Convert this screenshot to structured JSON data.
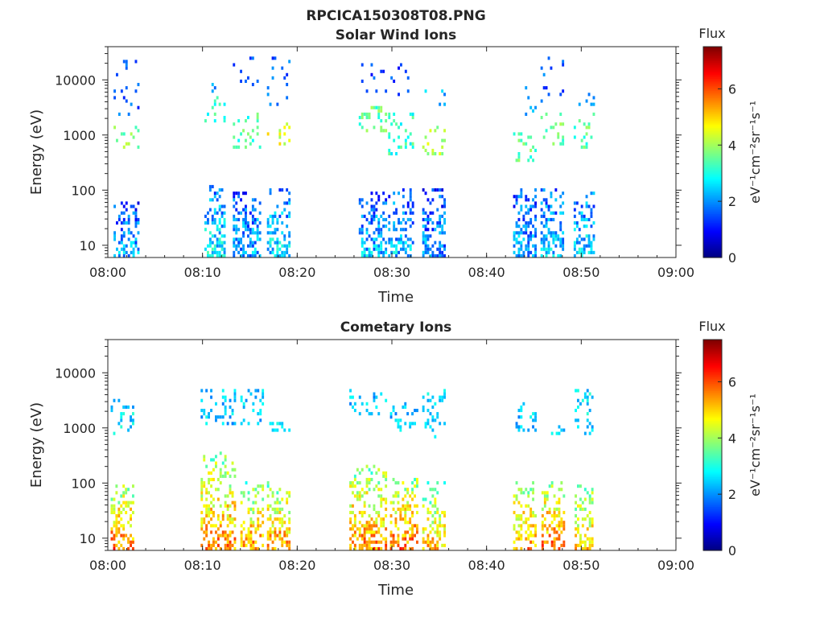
{
  "figure": {
    "title": "RPCICA150308T08.PNG"
  },
  "colormap": [
    "#00007f",
    "#0000ff",
    "#007fff",
    "#00ffff",
    "#7fff7f",
    "#ffff00",
    "#ff7f00",
    "#ff0000",
    "#7f0000"
  ],
  "chart_data": [
    {
      "type": "heatmap",
      "title": "Solar Wind Ions",
      "xlabel": "Time",
      "ylabel": "Energy (eV)",
      "x_ticks": [
        "08:00",
        "08:10",
        "08:20",
        "08:30",
        "08:40",
        "08:50",
        "09:00"
      ],
      "x_range_minutes": [
        0,
        60
      ],
      "y_scale": "log",
      "y_range": [
        6,
        40000
      ],
      "y_ticks": [
        "10",
        "100",
        "1000",
        "10000"
      ],
      "y_tick_values": [
        10,
        100,
        1000,
        10000
      ],
      "colorbar": {
        "label": "Flux",
        "unit": "eV⁻¹cm⁻²sr⁻¹s⁻¹",
        "ticks": [
          "0",
          "2",
          "4",
          "6"
        ],
        "range": [
          0,
          7.5
        ]
      },
      "bursts": [
        {
          "start_min": 0.6,
          "end_min": 3.3,
          "low_flux": 2.2,
          "low_band": [
            6,
            60
          ],
          "mid": [
            500,
            1300,
            3.8
          ],
          "high": [
            2000,
            25000,
            1.6
          ]
        },
        {
          "start_min": 10.2,
          "end_min": 12.3,
          "low_flux": 2.8,
          "low_band": [
            6,
            110
          ],
          "mid": [
            1500,
            5000,
            3.2
          ],
          "high": [
            3000,
            8000,
            2.0
          ]
        },
        {
          "start_min": 13.2,
          "end_min": 16.2,
          "low_flux": 2.2,
          "low_band": [
            6,
            100
          ],
          "mid": [
            500,
            2500,
            3.3
          ],
          "high": [
            5000,
            26000,
            1.4
          ]
        },
        {
          "start_min": 16.8,
          "end_min": 19.3,
          "low_flux": 2.6,
          "low_band": [
            6,
            100
          ],
          "mid": [
            600,
            1500,
            4.5
          ],
          "high": [
            3000,
            24000,
            1.6
          ]
        },
        {
          "start_min": 26.5,
          "end_min": 29.3,
          "low_flux": 2.3,
          "low_band": [
            6,
            100
          ],
          "mid": [
            1000,
            3000,
            3.5
          ],
          "high": [
            5000,
            20000,
            1.4
          ]
        },
        {
          "start_min": 29.6,
          "end_min": 32.3,
          "low_flux": 2.4,
          "low_band": [
            6,
            100
          ],
          "mid": [
            400,
            2500,
            3.2
          ],
          "high": [
            5000,
            20000,
            1.4
          ]
        },
        {
          "start_min": 33.2,
          "end_min": 35.5,
          "low_flux": 2.0,
          "low_band": [
            6,
            100
          ],
          "mid": [
            400,
            1300,
            4.0
          ],
          "high": [
            3000,
            7000,
            2.2
          ]
        },
        {
          "start_min": 42.8,
          "end_min": 45.2,
          "low_flux": 2.2,
          "low_band": [
            6,
            100
          ],
          "mid": [
            300,
            1000,
            3.5
          ],
          "high": [
            2000,
            8000,
            2.0
          ]
        },
        {
          "start_min": 45.7,
          "end_min": 48.2,
          "low_flux": 2.4,
          "low_band": [
            6,
            100
          ],
          "mid": [
            600,
            2500,
            3.6
          ],
          "high": [
            3000,
            40000,
            1.6
          ]
        },
        {
          "start_min": 49.2,
          "end_min": 51.3,
          "low_flux": 2.6,
          "low_band": [
            6,
            90
          ],
          "mid": [
            500,
            2500,
            3.4
          ],
          "high": [
            2000,
            7000,
            2.2
          ]
        }
      ]
    },
    {
      "type": "heatmap",
      "title": "Cometary Ions",
      "xlabel": "Time",
      "ylabel": "Energy (eV)",
      "x_ticks": [
        "08:00",
        "08:10",
        "08:20",
        "08:30",
        "08:40",
        "08:50",
        "09:00"
      ],
      "x_range_minutes": [
        0,
        60
      ],
      "y_scale": "log",
      "y_range": [
        6,
        40000
      ],
      "y_ticks": [
        "10",
        "100",
        "1000",
        "10000"
      ],
      "y_tick_values": [
        10,
        100,
        1000,
        10000
      ],
      "colorbar": {
        "label": "Flux",
        "unit": "eV⁻¹cm⁻²sr⁻¹s⁻¹",
        "ticks": [
          "0",
          "2",
          "4",
          "6"
        ],
        "range": [
          0,
          7.5
        ]
      },
      "bursts": [
        {
          "start_min": 0.3,
          "end_min": 2.6,
          "low_flux": 5.8,
          "low_band": [
            6,
            90
          ],
          "mid": [
            700,
            2500,
            2.6
          ],
          "high": [
            2000,
            3000,
            2.4
          ]
        },
        {
          "start_min": 9.8,
          "end_min": 13.5,
          "low_flux": 5.6,
          "low_band": [
            6,
            350
          ],
          "mid": [
            1000,
            5000,
            2.4
          ],
          "high": [
            2000,
            5000,
            2.2
          ]
        },
        {
          "start_min": 14.0,
          "end_min": 16.5,
          "low_flux": 5.5,
          "low_band": [
            6,
            100
          ],
          "mid": [
            1000,
            5000,
            2.4
          ],
          "high": [
            2000,
            5000,
            2.2
          ]
        },
        {
          "start_min": 16.8,
          "end_min": 19.2,
          "low_flux": 5.6,
          "low_band": [
            6,
            100
          ],
          "mid": [
            700,
            1200,
            2.6
          ],
          "high": [
            1000,
            1200,
            2.4
          ]
        },
        {
          "start_min": 25.5,
          "end_min": 29.3,
          "low_flux": 5.6,
          "low_band": [
            6,
            200
          ],
          "mid": [
            1500,
            5000,
            2.4
          ],
          "high": [
            2000,
            5000,
            2.2
          ]
        },
        {
          "start_min": 29.8,
          "end_min": 32.6,
          "low_flux": 5.8,
          "low_band": [
            6,
            120
          ],
          "mid": [
            800,
            2500,
            2.4
          ],
          "high": [
            2000,
            3000,
            2.2
          ]
        },
        {
          "start_min": 33.2,
          "end_min": 35.6,
          "low_flux": 5.2,
          "low_band": [
            6,
            100
          ],
          "mid": [
            600,
            5000,
            2.6
          ],
          "high": [
            2000,
            5000,
            2.2
          ]
        },
        {
          "start_min": 42.8,
          "end_min": 45.2,
          "low_flux": 5.6,
          "low_band": [
            6,
            100
          ],
          "mid": [
            800,
            2500,
            2.4
          ],
          "high": [
            2000,
            3000,
            2.2
          ]
        },
        {
          "start_min": 45.8,
          "end_min": 48.3,
          "low_flux": 5.8,
          "low_band": [
            6,
            120
          ],
          "mid": [
            700,
            1000,
            2.6
          ],
          "high": [
            800,
            1000,
            2.4
          ]
        },
        {
          "start_min": 49.3,
          "end_min": 51.3,
          "low_flux": 5.2,
          "low_band": [
            6,
            100
          ],
          "mid": [
            700,
            5000,
            2.6
          ],
          "high": [
            2000,
            5000,
            2.2
          ]
        }
      ]
    }
  ]
}
